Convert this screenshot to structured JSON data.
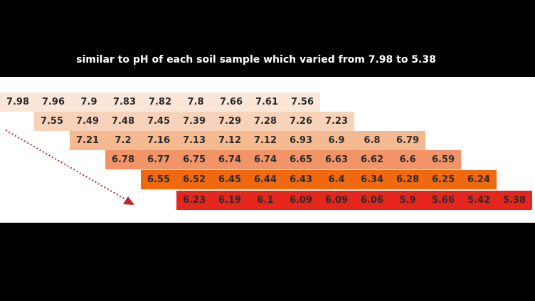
{
  "caption": "similar to pH of each soil sample which varied from 7.98 to 5.38",
  "table": {
    "rows": [
      [
        7.98,
        7.96,
        7.9,
        7.83,
        7.82,
        7.8,
        7.66,
        7.61,
        7.56
      ],
      [
        7.55,
        7.49,
        7.48,
        7.45,
        7.39,
        7.29,
        7.28,
        7.26,
        7.23
      ],
      [
        7.21,
        7.2,
        7.16,
        7.13,
        7.12,
        7.12,
        6.93,
        6.9,
        6.8,
        6.79
      ],
      [
        6.78,
        6.77,
        6.75,
        6.74,
        6.74,
        6.65,
        6.63,
        6.62,
        6.6,
        6.59
      ],
      [
        6.55,
        6.52,
        6.45,
        6.44,
        6.43,
        6.4,
        6.34,
        6.28,
        6.25,
        6.24
      ],
      [
        6.23,
        6.19,
        6.1,
        6.09,
        6.09,
        6.06,
        5.9,
        5.66,
        5.42,
        5.38
      ]
    ]
  }
}
